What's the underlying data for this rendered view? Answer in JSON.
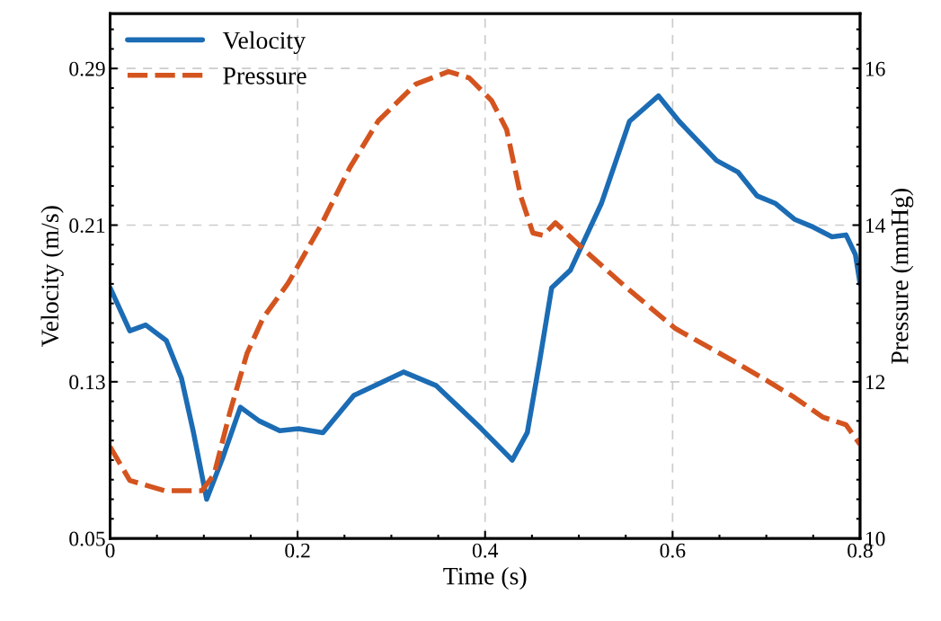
{
  "chart_data": {
    "type": "line",
    "xlabel": "Time (s)",
    "ylabel": "Velocity (m/s)",
    "y2label": "Pressure (mmHg)",
    "xlim": [
      0,
      0.8
    ],
    "xticks": [
      0,
      0.2,
      0.4,
      0.6,
      0.8
    ],
    "ylim": [
      0.05,
      0.318
    ],
    "yticks": [
      0.05,
      0.13,
      0.21,
      0.29
    ],
    "y2lim": [
      10,
      16.7
    ],
    "y2ticks": [
      10,
      12,
      14,
      16
    ],
    "grid": true,
    "legend": "top left",
    "series": [
      {
        "name": "Velocity",
        "color": "#1b6cb4",
        "line_style": "solid",
        "x": [
          0,
          0.021,
          0.038,
          0.06,
          0.076,
          0.089,
          0.103,
          0.12,
          0.139,
          0.159,
          0.181,
          0.201,
          0.227,
          0.26,
          0.282,
          0.313,
          0.348,
          0.396,
          0.429,
          0.445,
          0.458,
          0.471,
          0.491,
          0.524,
          0.554,
          0.585,
          0.607,
          0.647,
          0.67,
          0.69,
          0.71,
          0.73,
          0.75,
          0.77,
          0.785,
          0.795,
          0.8
        ],
        "values": [
          0.178,
          0.156,
          0.159,
          0.151,
          0.132,
          0.104,
          0.07,
          0.091,
          0.117,
          0.11,
          0.105,
          0.106,
          0.104,
          0.123,
          0.128,
          0.135,
          0.128,
          0.106,
          0.09,
          0.104,
          0.14,
          0.178,
          0.187,
          0.221,
          0.263,
          0.276,
          0.263,
          0.243,
          0.237,
          0.225,
          0.221,
          0.213,
          0.209,
          0.204,
          0.205,
          0.195,
          0.18
        ]
      },
      {
        "name": "Pressure",
        "color": "#d4541f",
        "line_style": "dashed",
        "axis": "y2",
        "x": [
          0,
          0.021,
          0.058,
          0.098,
          0.111,
          0.128,
          0.146,
          0.163,
          0.19,
          0.225,
          0.256,
          0.286,
          0.326,
          0.361,
          0.383,
          0.407,
          0.423,
          0.438,
          0.451,
          0.462,
          0.475,
          0.506,
          0.55,
          0.603,
          0.667,
          0.7,
          0.73,
          0.76,
          0.785,
          0.8
        ],
        "values": [
          11.17,
          10.74,
          10.61,
          10.61,
          10.82,
          11.62,
          12.36,
          12.81,
          13.26,
          14.0,
          14.74,
          15.33,
          15.8,
          15.96,
          15.88,
          15.59,
          15.22,
          14.37,
          13.9,
          13.87,
          14.03,
          13.68,
          13.21,
          12.68,
          12.25,
          12.02,
          11.8,
          11.55,
          11.45,
          11.2
        ]
      }
    ]
  }
}
